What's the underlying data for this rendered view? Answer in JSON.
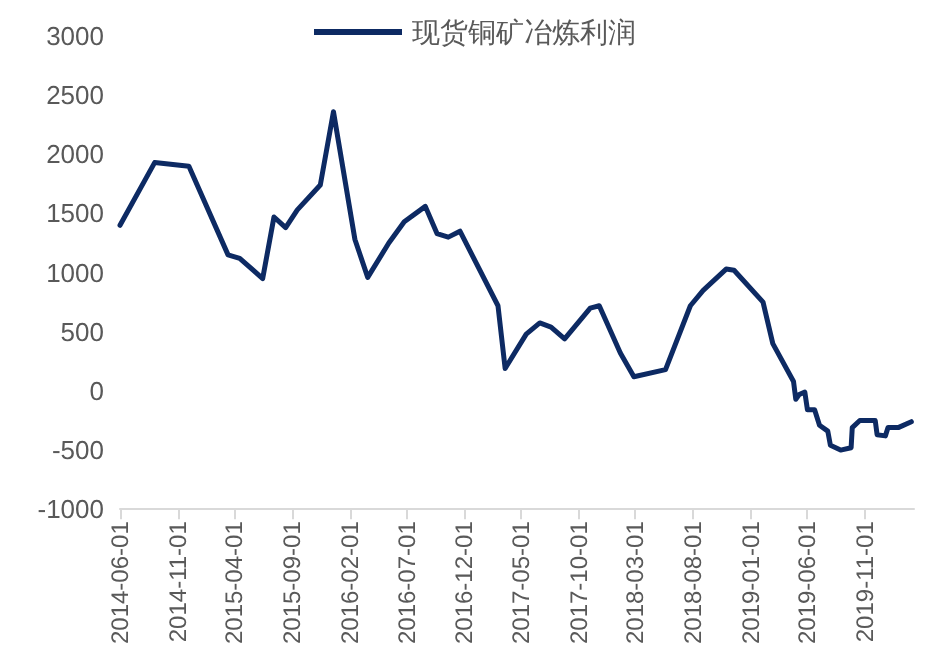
{
  "chart_data": {
    "type": "line",
    "legend": "top",
    "grid": false,
    "marker": "none",
    "line_style": "solid",
    "x": [
      "2014-06-01",
      "2014-09-01",
      "2014-12-01",
      "2015-03-15",
      "2015-04-15",
      "2015-06-15",
      "2015-07-15",
      "2015-08-15",
      "2015-09-15",
      "2015-11-15",
      "2015-12-20",
      "2016-02-15",
      "2016-03-20",
      "2016-05-15",
      "2016-06-25",
      "2016-08-20",
      "2016-09-20",
      "2016-10-20",
      "2016-11-20",
      "2017-03-01",
      "2017-03-20",
      "2017-05-15",
      "2017-06-20",
      "2017-07-20",
      "2017-08-25",
      "2017-11-01",
      "2017-11-25",
      "2018-01-20",
      "2018-02-25",
      "2018-05-20",
      "2018-07-25",
      "2018-08-28",
      "2018-10-28",
      "2018-11-18",
      "2019-02-03",
      "2019-03-01",
      "2019-04-25",
      "2019-05-01",
      "2019-05-10",
      "2019-05-25",
      "2019-06-01",
      "2019-06-20",
      "2019-07-03",
      "2019-07-25",
      "2019-08-01",
      "2019-08-28",
      "2019-09-25",
      "2019-09-28",
      "2019-10-18",
      "2019-11-28",
      "2019-12-03",
      "2019-12-25",
      "2020-01-01",
      "2020-01-28",
      "2020-03-03"
    ],
    "series": [
      {
        "name": "现货铜矿冶炼利润",
        "color": "#0d2a63",
        "values": [
          1400,
          1930,
          1900,
          1150,
          1120,
          950,
          1470,
          1380,
          1530,
          1740,
          2360,
          1280,
          960,
          1250,
          1430,
          1560,
          1330,
          1300,
          1350,
          720,
          190,
          480,
          575,
          540,
          440,
          700,
          720,
          320,
          120,
          180,
          720,
          850,
          1030,
          1020,
          750,
          400,
          80,
          -70,
          -30,
          -10,
          -160,
          -160,
          -290,
          -340,
          -460,
          -500,
          -480,
          -310,
          -250,
          -250,
          -370,
          -380,
          -310,
          -310,
          -260
        ]
      }
    ],
    "xlim": [
      "2014-06-01",
      "2020-03-10"
    ],
    "xticks": [
      "2014-06-01",
      "2014-11-01",
      "2015-04-01",
      "2015-09-01",
      "2016-02-01",
      "2016-07-01",
      "2016-12-01",
      "2017-05-01",
      "2017-10-01",
      "2018-03-01",
      "2018-08-01",
      "2019-01-01",
      "2019-06-01",
      "2019-11-01"
    ],
    "ylim": [
      -1000,
      3000
    ],
    "yticks": [
      -1000,
      -500,
      0,
      500,
      1000,
      1500,
      2000,
      2500,
      3000
    ]
  }
}
